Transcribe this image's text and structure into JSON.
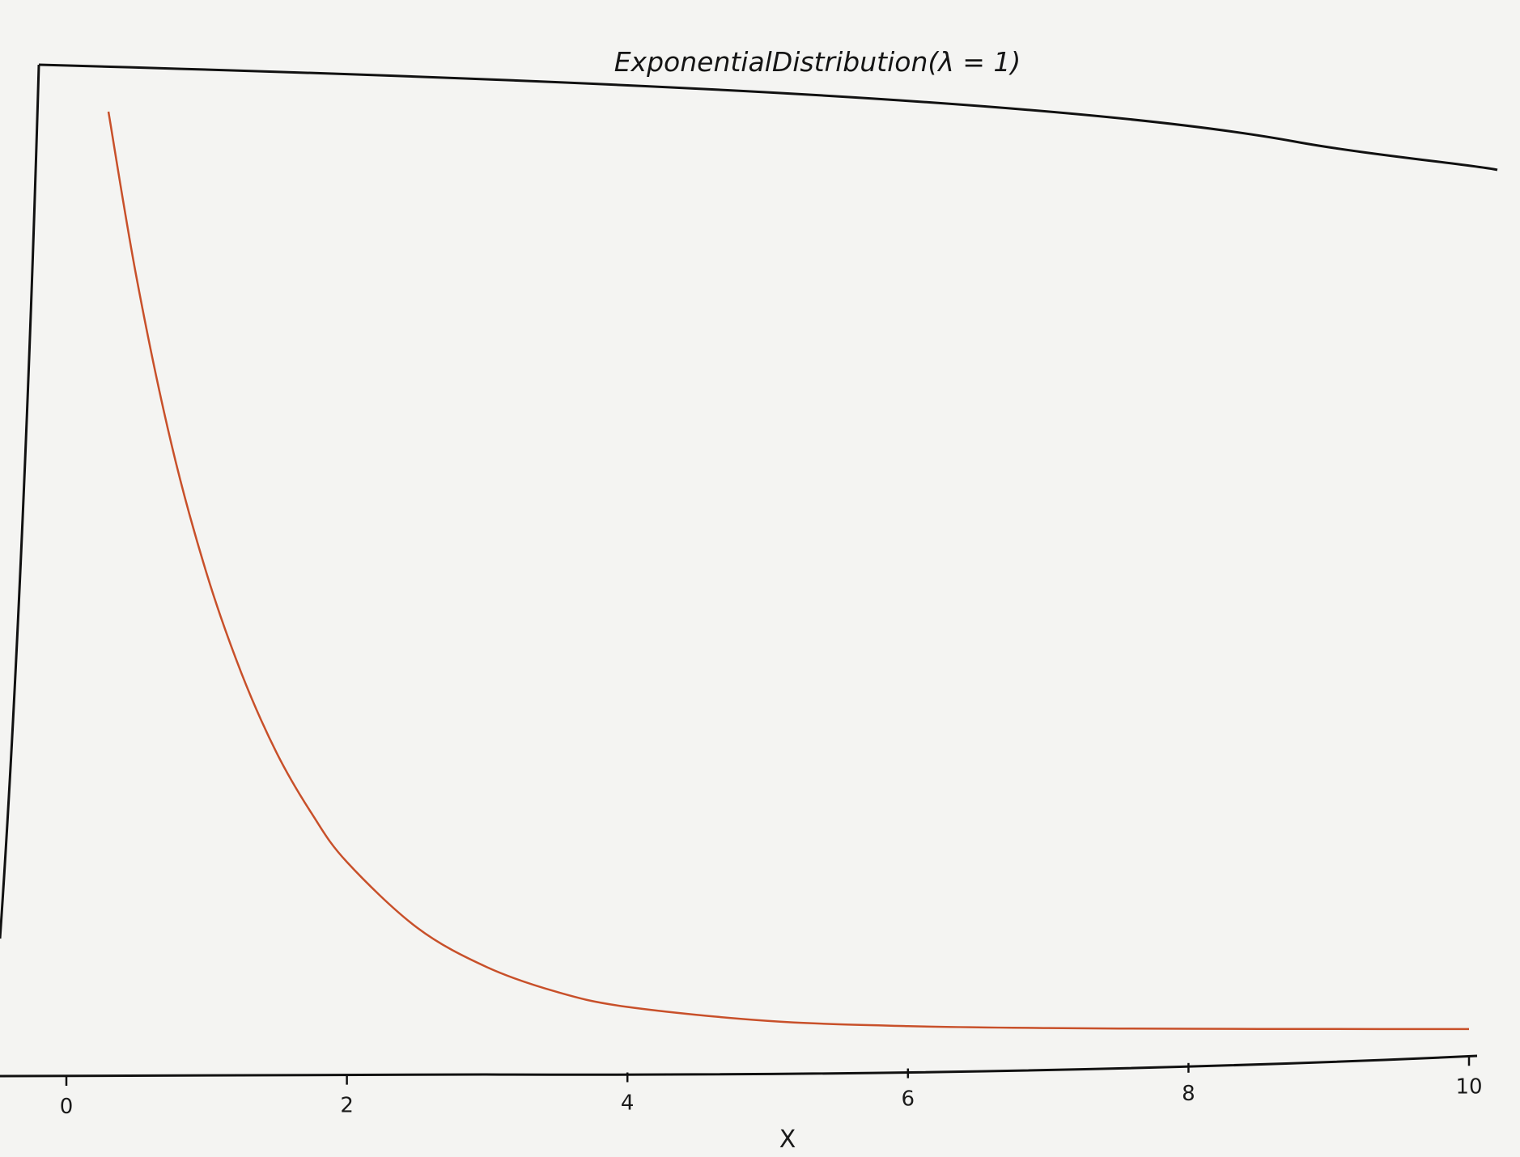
{
  "chart_data": {
    "type": "line",
    "title": "ExponentialDistribution(λ = 1)",
    "xlabel": "X",
    "ylabel": "",
    "xlim": [
      0,
      10
    ],
    "xticks": [
      0,
      2,
      4,
      6,
      8,
      10
    ],
    "grid": false,
    "legend": "none",
    "series": [
      {
        "color": "#c8502a",
        "x": [
          0.3,
          0.5,
          0.75,
          1.0,
          1.25,
          1.5,
          1.75,
          2.0,
          2.5,
          3.0,
          3.5,
          4.0,
          5.0,
          6.0,
          7.0,
          8.0,
          9.0,
          10.0
        ],
        "y": [
          0.741,
          0.607,
          0.472,
          0.368,
          0.287,
          0.223,
          0.174,
          0.135,
          0.082,
          0.05,
          0.03,
          0.018,
          0.0067,
          0.0025,
          0.0009,
          0.0003,
          0.0001,
          5e-05
        ]
      }
    ]
  }
}
